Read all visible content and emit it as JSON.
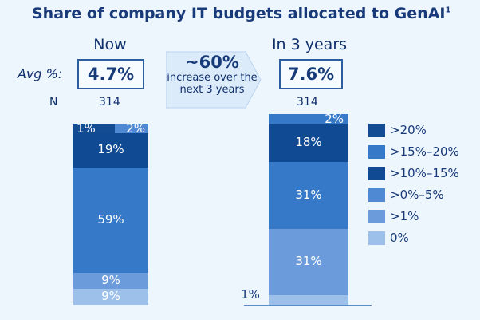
{
  "chart_data": {
    "type": "bar",
    "stacked": true,
    "title": "Share of company IT budgets allocated to GenAI",
    "title_footnote": "1",
    "avg_label": "Avg %:",
    "n_label": "N",
    "arrow": {
      "value": "~60%",
      "text1": "increase over the",
      "text2": "next 3 years"
    },
    "legend": [
      {
        "label": ">20%",
        "color": "#134c93"
      },
      {
        "label": ">15%–20%",
        "color": "#3579c8"
      },
      {
        "label": ">10%–15%",
        "color": "#0f4a92"
      },
      {
        "label": ">0%–5%",
        "color": "#4f88d3"
      },
      {
        "label": ">1%",
        "color": "#6c9bdb"
      },
      {
        "label": "0%",
        "color": "#9dc0ea"
      }
    ],
    "bars": [
      {
        "name": "Now",
        "avg": "4.7%",
        "n": "314",
        "segments": [
          {
            "value": 9,
            "label": "9%",
            "color": "#9dc0ea"
          },
          {
            "value": 9,
            "label": "9%",
            "color": "#6c9bdb"
          },
          {
            "value": 59,
            "label": "59%",
            "color": "#3579c8"
          },
          {
            "value": 19,
            "label": "19%",
            "color": "#0f4a92"
          },
          {
            "value": 1,
            "label": "1%",
            "color": "#134c93"
          },
          {
            "value": 2,
            "label": "2%",
            "color": "#4f88d3"
          }
        ]
      },
      {
        "name": "In 3 years",
        "avg": "7.6%",
        "n": "314",
        "segments": [
          {
            "value": 1,
            "label": "1%",
            "color": "#9dc0ea"
          },
          {
            "value": 31,
            "label": "31%",
            "color": "#6c9bdb"
          },
          {
            "value": 31,
            "label": "31%",
            "color": "#3579c8"
          },
          {
            "value": 18,
            "label": "18%",
            "color": "#0f4a92"
          },
          {
            "value": 2,
            "label": "2%",
            "color": "#3579c8"
          }
        ]
      }
    ]
  }
}
